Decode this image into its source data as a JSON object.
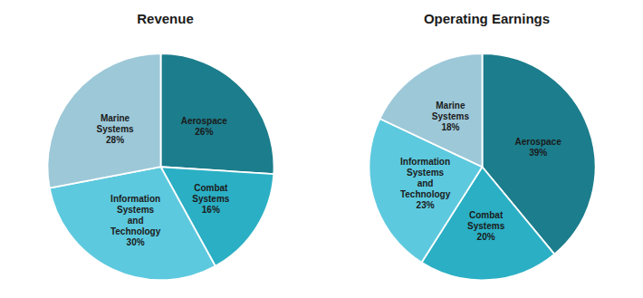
{
  "chart_data": [
    {
      "type": "pie",
      "title": "Revenue",
      "categories": [
        "Aerospace\n26%",
        "Combat\nSystems\n16%",
        "Information\nSystems\nand\nTechnology\n30%",
        "Marine\nSystems\n28%"
      ],
      "values": [
        26,
        16,
        30,
        28
      ],
      "colors": [
        "#1c7d8c",
        "#2bafc4",
        "#5dc9de",
        "#9dc8d8"
      ]
    },
    {
      "type": "pie",
      "title": "Operating Earnings",
      "categories": [
        "Aerospace\n39%",
        "Combat\nSystems\n20%",
        "Information\nSystems\nand\nTechnology\n23%",
        "Marine\nSystems\n18%"
      ],
      "values": [
        39,
        20,
        23,
        18
      ],
      "colors": [
        "#1c7d8c",
        "#2bafc4",
        "#5dc9de",
        "#9dc8d8"
      ]
    }
  ]
}
